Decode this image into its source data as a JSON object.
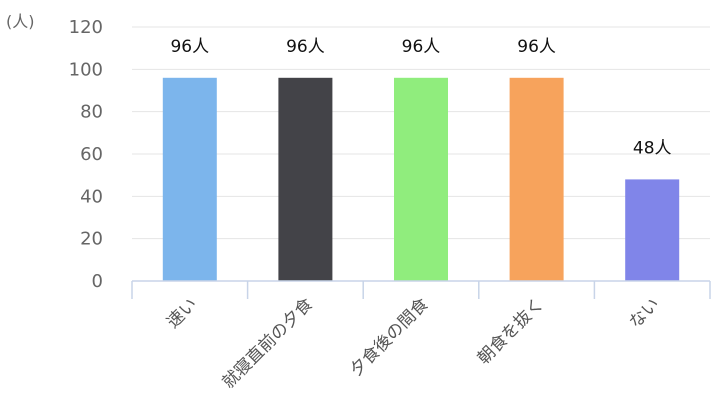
{
  "chart_data": {
    "type": "bar",
    "unit": "(人)",
    "categories": [
      "速い",
      "就寝直前の夕食",
      "夕食後の間食",
      "朝食を抜く",
      "ない"
    ],
    "values": [
      96,
      96,
      96,
      96,
      48
    ],
    "data_labels": [
      "96人",
      "96人",
      "96人",
      "96人",
      "48人"
    ],
    "colors": [
      "#7cb5ec",
      "#434348",
      "#90ed7d",
      "#f7a35c",
      "#8085e9"
    ],
    "ylim": [
      0,
      120
    ],
    "yticks": [
      0,
      20,
      40,
      60,
      80,
      100,
      120
    ],
    "grid": true,
    "legend": "none"
  }
}
